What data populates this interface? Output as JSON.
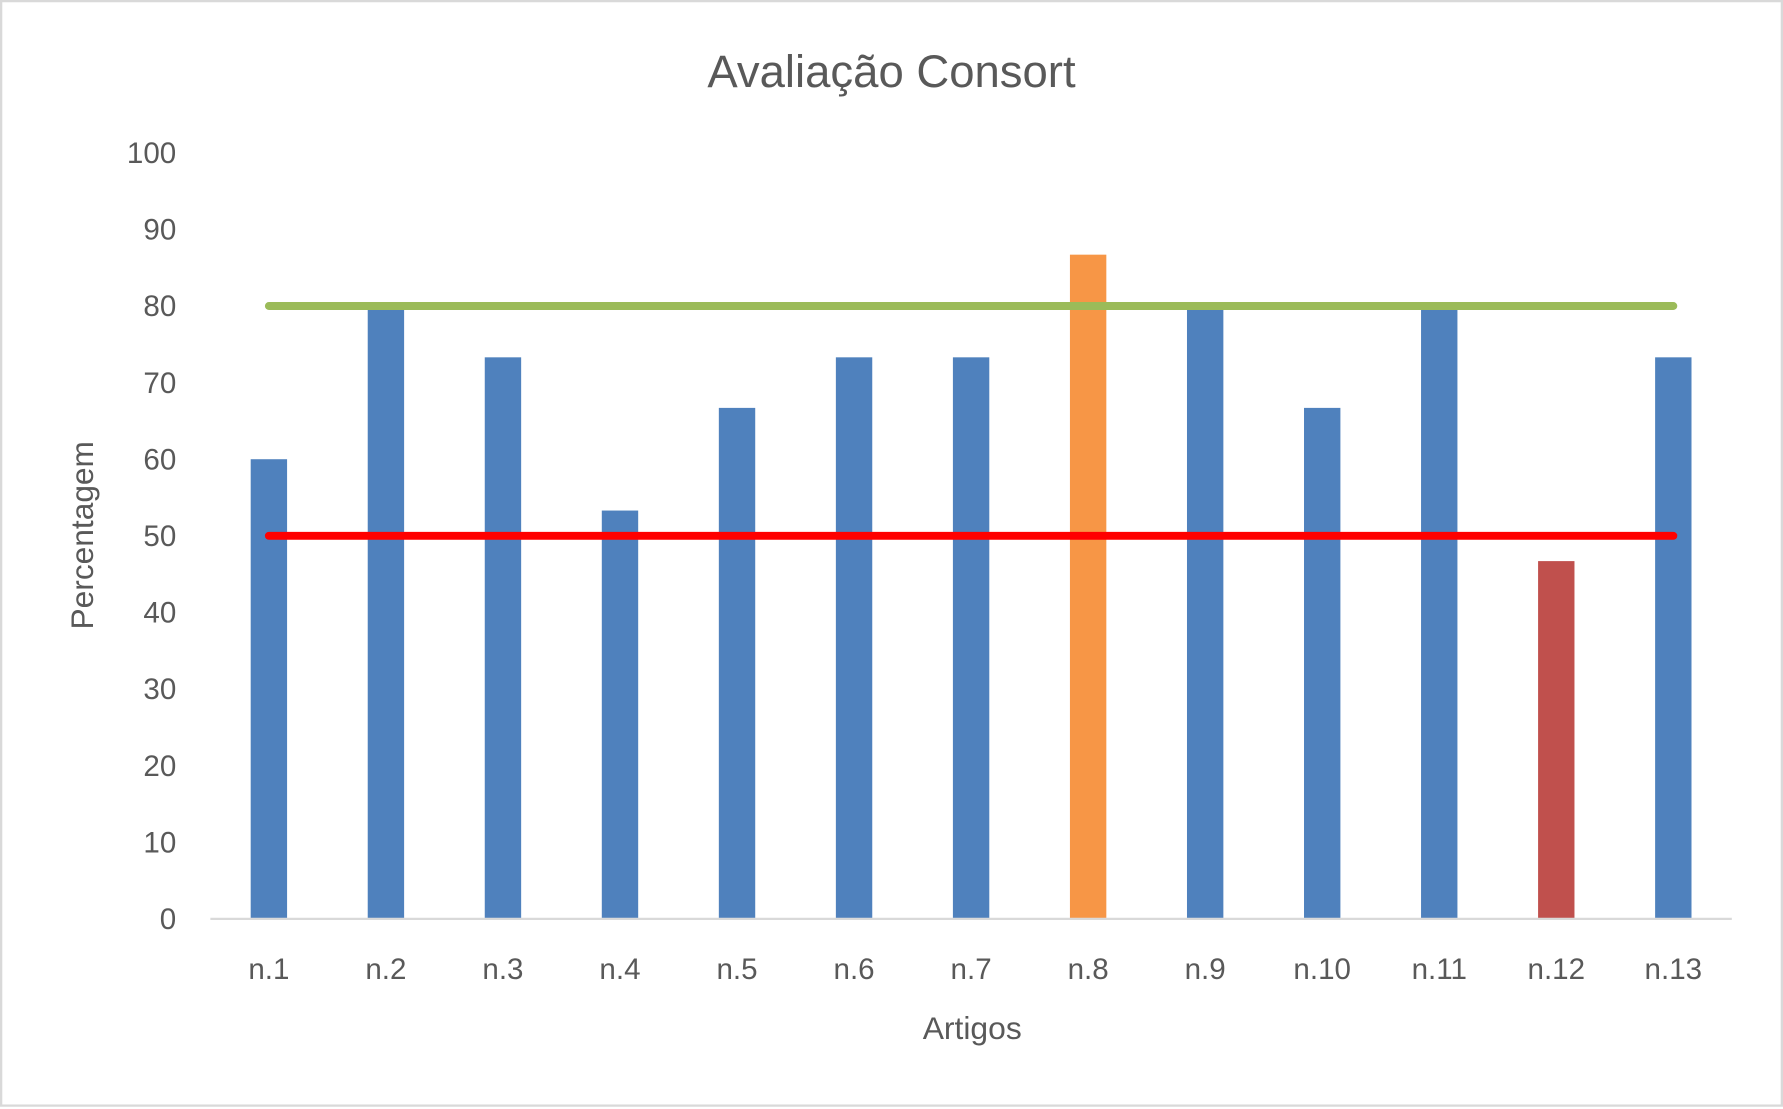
{
  "chart_data": {
    "type": "bar",
    "title": "Avaliação Consort",
    "xlabel": "Artigos",
    "ylabel": "Percentagem",
    "ylim": [
      0,
      100
    ],
    "yticks": [
      0,
      10,
      20,
      30,
      40,
      50,
      60,
      70,
      80,
      90,
      100
    ],
    "grid": false,
    "categories": [
      "n.1",
      "n.2",
      "n.3",
      "n.4",
      "n.5",
      "n.6",
      "n.7",
      "n.8",
      "n.9",
      "n.10",
      "n.11",
      "n.12",
      "n.13"
    ],
    "values": [
      60,
      80,
      73.3,
      53.3,
      66.7,
      73.3,
      73.3,
      86.7,
      80,
      66.7,
      80,
      46.7,
      73.3
    ],
    "bar_colors": [
      "#4f81bd",
      "#4f81bd",
      "#4f81bd",
      "#4f81bd",
      "#4f81bd",
      "#4f81bd",
      "#4f81bd",
      "#f79646",
      "#4f81bd",
      "#4f81bd",
      "#4f81bd",
      "#c0504d",
      "#4f81bd"
    ],
    "reference_lines": [
      {
        "value": 80,
        "color": "#9bbb59"
      },
      {
        "value": 50,
        "color": "#ff0000"
      }
    ]
  }
}
